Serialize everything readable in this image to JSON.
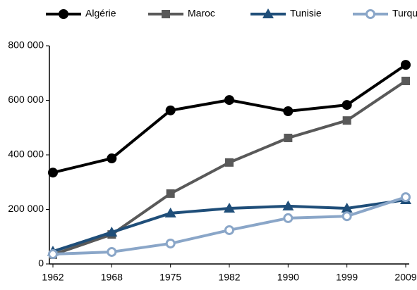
{
  "chart_data": {
    "type": "line",
    "categories": [
      "1962",
      "1968",
      "1975",
      "1982",
      "1990",
      "1999",
      "2009"
    ],
    "series": [
      {
        "name": "Algérie",
        "color": "#000000",
        "marker": "circle",
        "values": [
          335000,
          387000,
          563000,
          601000,
          560000,
          583000,
          730000
        ]
      },
      {
        "name": "Maroc",
        "color": "#595959",
        "marker": "square",
        "values": [
          34000,
          108000,
          258000,
          372000,
          462000,
          526000,
          671000
        ]
      },
      {
        "name": "Tunisie",
        "color": "#1f4e79",
        "marker": "triangle",
        "values": [
          46000,
          116000,
          186000,
          204000,
          212000,
          204000,
          235000
        ]
      },
      {
        "name": "Turquie",
        "color": "#8aa6c8",
        "marker": "open-circle",
        "values": [
          36000,
          44000,
          75000,
          124000,
          168000,
          175000,
          245000
        ]
      }
    ],
    "ylim": [
      0,
      800000
    ],
    "yticks": [
      0,
      {
        "value": 200000,
        "label": "200 000"
      },
      {
        "value": 400000,
        "label": "400 000"
      },
      {
        "value": 600000,
        "label": "600 000"
      },
      {
        "value": 800000,
        "label": "800 000"
      }
    ],
    "legend": "top"
  }
}
